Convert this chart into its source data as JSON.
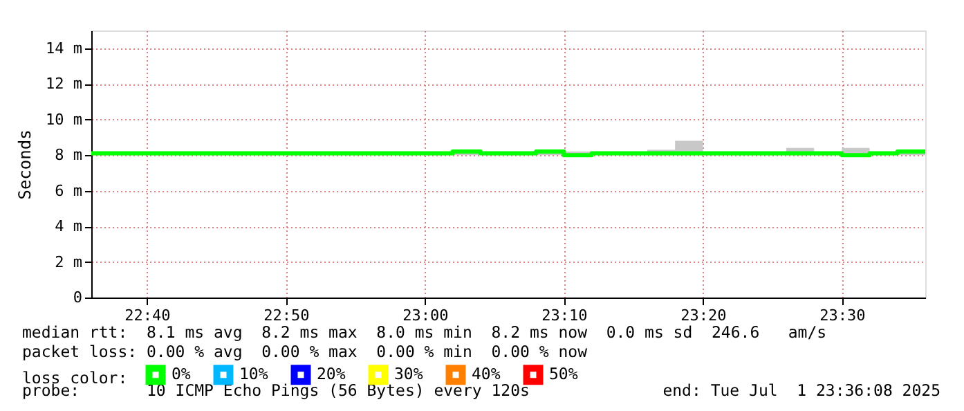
{
  "chart_data": {
    "type": "step",
    "ylabel": "Seconds",
    "x": [
      "2025-07-01T22:36",
      "2025-07-01T22:38",
      "2025-07-01T22:40",
      "2025-07-01T22:42",
      "2025-07-01T22:44",
      "2025-07-01T22:46",
      "2025-07-01T22:48",
      "2025-07-01T22:50",
      "2025-07-01T22:52",
      "2025-07-01T22:54",
      "2025-07-01T22:56",
      "2025-07-01T22:58",
      "2025-07-01T23:00",
      "2025-07-01T23:02",
      "2025-07-01T23:04",
      "2025-07-01T23:06",
      "2025-07-01T23:08",
      "2025-07-01T23:10",
      "2025-07-01T23:12",
      "2025-07-01T23:14",
      "2025-07-01T23:16",
      "2025-07-01T23:18",
      "2025-07-01T23:20",
      "2025-07-01T23:22",
      "2025-07-01T23:24",
      "2025-07-01T23:26",
      "2025-07-01T23:28",
      "2025-07-01T23:30",
      "2025-07-01T23:32",
      "2025-07-01T23:34",
      "2025-07-01T23:36"
    ],
    "series": [
      {
        "name": "0%",
        "color": "#00ff00",
        "values": [
          8.1,
          8.1,
          8.1,
          8.1,
          8.1,
          8.1,
          8.1,
          8.1,
          8.1,
          8.1,
          8.1,
          8.1,
          8.1,
          8.2,
          8.1,
          8.1,
          8.2,
          8.0,
          8.1,
          8.1,
          8.1,
          8.1,
          8.1,
          8.1,
          8.1,
          8.1,
          8.1,
          8.0,
          8.1,
          8.2,
          8.2
        ],
        "lower": [
          8.0,
          8.0,
          8.0,
          8.0,
          8.0,
          8.0,
          8.0,
          8.0,
          8.0,
          8.0,
          8.0,
          8.0,
          8.0,
          8.0,
          8.0,
          8.0,
          8.0,
          8.0,
          8.0,
          8.0,
          8.0,
          8.0,
          8.0,
          8.0,
          8.0,
          8.0,
          8.0,
          7.9,
          8.0,
          8.0,
          8.0
        ],
        "upper": [
          8.2,
          8.2,
          8.2,
          8.2,
          8.2,
          8.2,
          8.2,
          8.2,
          8.2,
          8.2,
          8.2,
          8.2,
          8.2,
          8.2,
          8.2,
          8.2,
          8.2,
          8.2,
          8.2,
          8.2,
          8.3,
          8.8,
          8.2,
          8.2,
          8.2,
          8.4,
          8.2,
          8.4,
          8.2,
          8.2,
          8.2
        ]
      },
      {
        "name": "10%",
        "color": "#00b8ff",
        "values": [
          null,
          null,
          null,
          null,
          null,
          null,
          null,
          null,
          null,
          null,
          null,
          null,
          null,
          null,
          null,
          null,
          null,
          null,
          null,
          null,
          null,
          null,
          null,
          null,
          null,
          null,
          null,
          null,
          null,
          null,
          null
        ]
      },
      {
        "name": "20%",
        "color": "#0000ff",
        "values": [
          null,
          null,
          null,
          null,
          null,
          null,
          null,
          null,
          null,
          null,
          null,
          null,
          null,
          null,
          null,
          null,
          null,
          null,
          null,
          null,
          null,
          null,
          null,
          null,
          null,
          null,
          null,
          null,
          null,
          null,
          null
        ]
      },
      {
        "name": "30%",
        "color": "#ffff00",
        "values": [
          null,
          null,
          null,
          null,
          null,
          null,
          null,
          null,
          null,
          null,
          null,
          null,
          null,
          null,
          null,
          null,
          null,
          null,
          null,
          null,
          null,
          null,
          null,
          null,
          null,
          null,
          null,
          null,
          null,
          null,
          null
        ]
      },
      {
        "name": "40%",
        "color": "#ff8000",
        "values": [
          null,
          null,
          null,
          null,
          null,
          null,
          null,
          null,
          null,
          null,
          null,
          null,
          null,
          null,
          null,
          null,
          null,
          null,
          null,
          null,
          null,
          null,
          null,
          null,
          null,
          null,
          null,
          null,
          null,
          null,
          null
        ]
      },
      {
        "name": "50%",
        "color": "#ff0000",
        "values": [
          null,
          null,
          null,
          null,
          null,
          null,
          null,
          null,
          null,
          null,
          null,
          null,
          null,
          null,
          null,
          null,
          null,
          null,
          null,
          null,
          null,
          null,
          null,
          null,
          null,
          null,
          null,
          null,
          null,
          null,
          null
        ]
      }
    ],
    "legend": "bottom",
    "legend_title": "loss color:",
    "xlim": [
      "2025-07-01T22:36",
      "2025-07-01T23:36"
    ],
    "xticks": [
      {
        "value": "2025-07-01T22:40",
        "label": "22:40"
      },
      {
        "value": "2025-07-01T22:50",
        "label": "22:50"
      },
      {
        "value": "2025-07-01T23:00",
        "label": "23:00"
      },
      {
        "value": "2025-07-01T23:10",
        "label": "23:10"
      },
      {
        "value": "2025-07-01T23:20",
        "label": "23:20"
      },
      {
        "value": "2025-07-01T23:30",
        "label": "23:30"
      }
    ],
    "ylim": [
      0,
      15
    ],
    "yticks": [
      0,
      {
        "value": 2,
        "label": "2 m"
      },
      {
        "value": 4,
        "label": "4 m"
      },
      {
        "value": 6,
        "label": "6 m"
      },
      {
        "value": 8,
        "label": "8 m"
      },
      {
        "value": 10,
        "label": "10 m"
      },
      {
        "value": 12,
        "label": "12 m"
      },
      {
        "value": 14,
        "label": "14 m"
      }
    ],
    "grid": true,
    "annotations": [
      "median rtt:  8.1 ms avg  8.2 ms max  8.0 ms min  8.2 ms now  0.0 ms sd  246.6   am/s",
      "packet loss: 0.00 % avg  0.00 % max  0.00 % min  0.00 % now",
      "probe:       10 ICMP Echo Pings (56 Bytes) every 120s",
      "end: Tue Jul  1 23:36:08 2025"
    ]
  }
}
